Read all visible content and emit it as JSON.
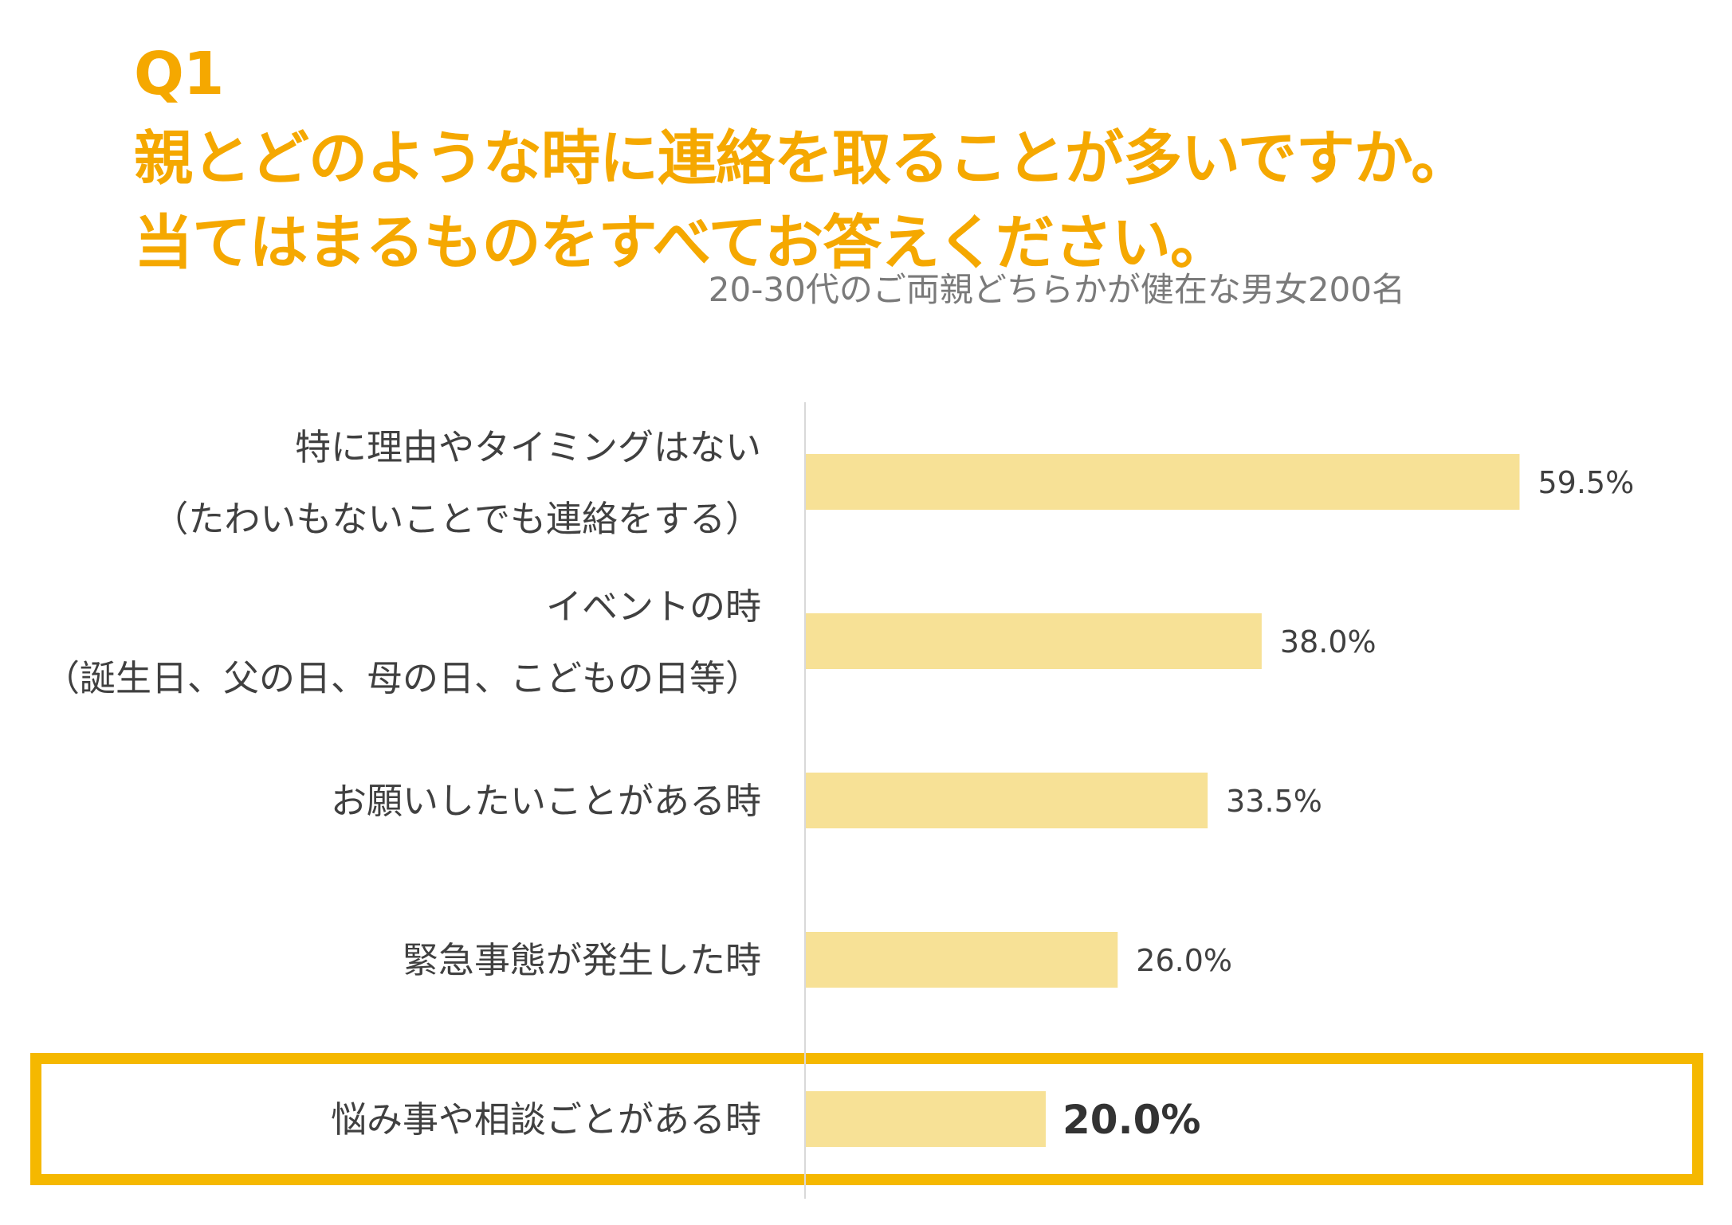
{
  "title": {
    "line1": "Q1",
    "line2": "親とどのような時に連絡を取ることが多いですか。",
    "line3": "当てはまるものをすべてお答えください。"
  },
  "subtitle": "20-30代のご両親どちらかが健在な男女200名",
  "colors": {
    "title": "#f5a800",
    "bar": "#f7e196",
    "highlight_frame": "#f5b800",
    "axis": "#d9d9d9",
    "text": "#404040"
  },
  "chart_data": {
    "type": "bar",
    "orientation": "horizontal",
    "categories": [
      [
        "特に理由やタイミングはない",
        "（たわいもないことでも連絡をする）"
      ],
      [
        "イベントの時",
        "（誕生日、父の日、母の日、こどもの日等）"
      ],
      [
        "お願いしたいことがある時"
      ],
      [
        "緊急事態が発生した時"
      ],
      [
        "悩み事や相談ごとがある時"
      ]
    ],
    "values": [
      59.5,
      38.0,
      33.5,
      26.0,
      20.0
    ],
    "value_labels": [
      "59.5%",
      "38.0%",
      "33.5%",
      "26.0%",
      "20.0%"
    ],
    "unit": "%",
    "xlim": [
      0,
      100
    ],
    "highlighted_category_index": 4,
    "grid": false,
    "legend": "none"
  }
}
